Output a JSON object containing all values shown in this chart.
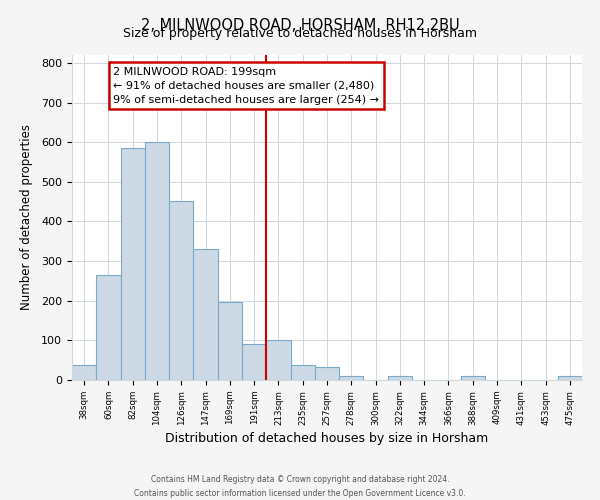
{
  "title": "2, MILNWOOD ROAD, HORSHAM, RH12 2BU",
  "subtitle": "Size of property relative to detached houses in Horsham",
  "xlabel": "Distribution of detached houses by size in Horsham",
  "ylabel": "Number of detached properties",
  "bin_labels": [
    "38sqm",
    "60sqm",
    "82sqm",
    "104sqm",
    "126sqm",
    "147sqm",
    "169sqm",
    "191sqm",
    "213sqm",
    "235sqm",
    "257sqm",
    "278sqm",
    "300sqm",
    "322sqm",
    "344sqm",
    "366sqm",
    "388sqm",
    "409sqm",
    "431sqm",
    "453sqm",
    "475sqm"
  ],
  "bar_values": [
    38,
    265,
    585,
    600,
    452,
    330,
    197,
    90,
    100,
    38,
    32,
    11,
    0,
    11,
    0,
    0,
    10,
    0,
    0,
    0,
    10
  ],
  "bar_color": "#cdd9e5",
  "bar_edgecolor": "#7aaac8",
  "vline_x_index": 7.5,
  "vline_color": "#cc0000",
  "annotation_title": "2 MILNWOOD ROAD: 199sqm",
  "annotation_line1": "← 91% of detached houses are smaller (2,480)",
  "annotation_line2": "9% of semi-detached houses are larger (254) →",
  "annotation_box_edgecolor": "#cc0000",
  "ylim": [
    0,
    820
  ],
  "yticks": [
    0,
    100,
    200,
    300,
    400,
    500,
    600,
    700,
    800
  ],
  "footer1": "Contains HM Land Registry data © Crown copyright and database right 2024.",
  "footer2": "Contains public sector information licensed under the Open Government Licence v3.0.",
  "bg_color": "#f5f5f5",
  "plot_bg_color": "#ffffff",
  "grid_color": "#d0d8e0"
}
